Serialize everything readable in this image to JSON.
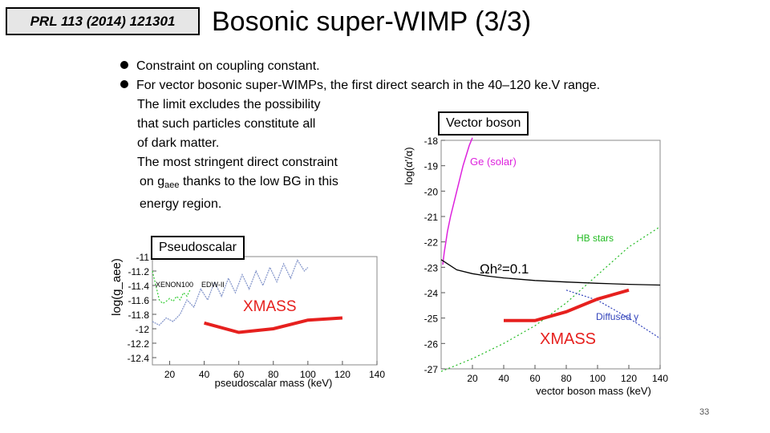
{
  "slide": {
    "ref": "PRL 113 (2014) 121301",
    "title": "Bosonic super-WIMP (3/3)",
    "bullets": [
      "Constraint on coupling constant.",
      "For vector bosonic super-WIMPs, the first direct search in the 40–120 ke.V range."
    ],
    "body_lines": [
      "The limit excludes the possibility",
      "that such particles constitute all",
      "of dark matter.",
      "The most stringent direct constraint"
    ],
    "body_line5_pre": "on g",
    "body_line5_sub": "aee",
    "body_line5_post": " thanks to the low BG in this",
    "body_line6": "energy region.",
    "vector_label": "Vector boson",
    "pseudo_label": "Pseudoscalar",
    "page_number": "33"
  },
  "chart_data": [
    {
      "type": "line",
      "title": "Pseudoscalar",
      "xlabel": "pseudoscalar mass (keV)",
      "ylabel": "log(g_aee)",
      "xlim": [
        10,
        140
      ],
      "ylim": [
        -12.5,
        -11
      ],
      "x_ticks": [
        "20",
        "40",
        "60",
        "80",
        "100",
        "120",
        "140"
      ],
      "y_ticks": [
        "-11",
        "-11.2",
        "-11.4",
        "-11.6",
        "-11.8",
        "-12",
        "-12.2",
        "-12.4"
      ],
      "annotations": [
        "XENON100",
        "EDW-II",
        "XMASS"
      ],
      "series": [
        {
          "name": "XENON100",
          "color": "#33cc33",
          "x": [
            10,
            12,
            14,
            16,
            18,
            20,
            22,
            24,
            26,
            28,
            30,
            32
          ],
          "y": [
            -11.2,
            -11.4,
            -11.6,
            -11.65,
            -11.62,
            -11.58,
            -11.62,
            -11.55,
            -11.6,
            -11.5,
            -11.55,
            -11.45
          ]
        },
        {
          "name": "EDW-II",
          "color": "#8899cc",
          "x": [
            10,
            14,
            18,
            22,
            26,
            30,
            34,
            38,
            42,
            46,
            50,
            54,
            58,
            62,
            66,
            70,
            74,
            78,
            82,
            86,
            90,
            94,
            98,
            100
          ],
          "y": [
            -11.9,
            -11.95,
            -11.85,
            -11.9,
            -11.8,
            -11.6,
            -11.7,
            -11.45,
            -11.6,
            -11.35,
            -11.55,
            -11.3,
            -11.5,
            -11.25,
            -11.45,
            -11.2,
            -11.4,
            -11.15,
            -11.35,
            -11.1,
            -11.3,
            -11.05,
            -11.2,
            -11.15
          ]
        },
        {
          "name": "XMASS",
          "color": "#e6201e",
          "x": [
            40,
            60,
            80,
            100,
            120
          ],
          "y": [
            -11.92,
            -12.05,
            -12.0,
            -11.88,
            -11.85
          ]
        }
      ]
    },
    {
      "type": "line",
      "title": "Vector boson",
      "xlabel": "vector boson mass (keV)",
      "ylabel": "log(α'/α)",
      "xlim": [
        0,
        140
      ],
      "ylim": [
        -27,
        -18
      ],
      "x_ticks": [
        "20",
        "40",
        "60",
        "80",
        "100",
        "120",
        "140"
      ],
      "y_ticks": [
        "-18",
        "-19",
        "-20",
        "-21",
        "-22",
        "-23",
        "-24",
        "-25",
        "-26",
        "-27"
      ],
      "annotations": [
        "Ge (solar)",
        "HB stars",
        "Ωh²=0.1",
        "Diffused γ",
        "XMASS"
      ],
      "series": [
        {
          "name": "Ge (solar)",
          "color": "#dd22dd",
          "x": [
            1,
            2,
            3,
            4,
            6,
            8,
            10,
            12,
            14,
            16,
            18,
            20
          ],
          "y": [
            -22.9,
            -22.4,
            -22.0,
            -21.6,
            -21.0,
            -20.5,
            -20.0,
            -19.5,
            -19.0,
            -18.6,
            -18.2,
            -17.9
          ]
        },
        {
          "name": "HB stars",
          "color": "#22bb22",
          "x": [
            0,
            20,
            40,
            60,
            80,
            100,
            120,
            140
          ],
          "y": [
            -27.1,
            -26.6,
            -26.0,
            -25.3,
            -24.4,
            -23.3,
            -22.2,
            -21.4
          ]
        },
        {
          "name": "Ωh²=0.1",
          "color": "#000000",
          "x": [
            0,
            10,
            20,
            30,
            40,
            60,
            80,
            100,
            120,
            140
          ],
          "y": [
            -22.7,
            -23.1,
            -23.25,
            -23.35,
            -23.42,
            -23.52,
            -23.58,
            -23.63,
            -23.67,
            -23.7
          ]
        },
        {
          "name": "Diffused γ",
          "color": "#3344bb",
          "x": [
            80,
            100,
            120,
            140
          ],
          "y": [
            -23.9,
            -24.3,
            -25.0,
            -25.8
          ]
        },
        {
          "name": "XMASS",
          "color": "#e6201e",
          "x": [
            40,
            60,
            80,
            100,
            120
          ],
          "y": [
            -25.1,
            -25.1,
            -24.75,
            -24.25,
            -23.9
          ]
        }
      ]
    }
  ]
}
